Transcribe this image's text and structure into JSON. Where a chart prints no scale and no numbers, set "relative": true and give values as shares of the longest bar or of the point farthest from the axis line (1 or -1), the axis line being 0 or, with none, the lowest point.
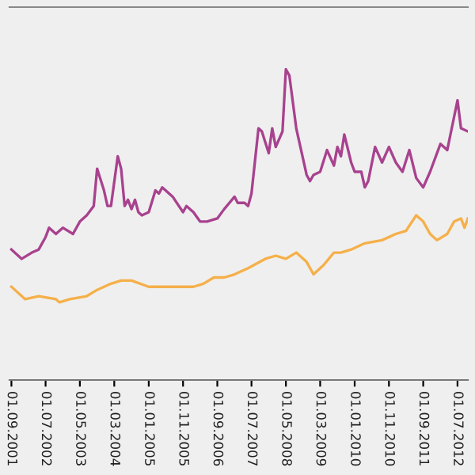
{
  "chart_data": {
    "type": "line",
    "relative": true,
    "grid": false,
    "legend": false,
    "xlim": [
      "2001-08-15",
      "2012-10-01"
    ],
    "xticks": [
      {
        "value": "2001-09-01",
        "label": "01.09.2001"
      },
      {
        "value": "2002-07-01",
        "label": "01.07.2002"
      },
      {
        "value": "2003-05-01",
        "label": "01.05.2003"
      },
      {
        "value": "2004-03-01",
        "label": "01.03.2004"
      },
      {
        "value": "2005-01-01",
        "label": "01.01.2005"
      },
      {
        "value": "2005-11-01",
        "label": "01.11.2005"
      },
      {
        "value": "2006-09-01",
        "label": "01.09.2006"
      },
      {
        "value": "2007-07-01",
        "label": "01.07.2007"
      },
      {
        "value": "2008-05-01",
        "label": "01.05.2008"
      },
      {
        "value": "2009-03-01",
        "label": "01.03.2009"
      },
      {
        "value": "2010-01-01",
        "label": "01.01.2010"
      },
      {
        "value": "2010-11-01",
        "label": "01.11.2010"
      },
      {
        "value": "2011-09-01",
        "label": "01.09.2011"
      },
      {
        "value": "2012-07-01",
        "label": "01.07.2012"
      }
    ],
    "series": [
      {
        "color": "#a8428e",
        "x": [
          "2001-09",
          "2001-12",
          "2002-03",
          "2002-05",
          "2002-07",
          "2002-08",
          "2002-10",
          "2002-12",
          "2003-03",
          "2003-05",
          "2003-07",
          "2003-09",
          "2003-10",
          "2003-12",
          "2004-01",
          "2004-02",
          "2004-04",
          "2004-05",
          "2004-06",
          "2004-07",
          "2004-08",
          "2004-09",
          "2004-10",
          "2004-11",
          "2005-01",
          "2005-03",
          "2005-04",
          "2005-05",
          "2005-08",
          "2005-11",
          "2005-12",
          "2006-02",
          "2006-04",
          "2006-06",
          "2006-09",
          "2006-11",
          "2007-02",
          "2007-03",
          "2007-05",
          "2007-06",
          "2007-07",
          "2007-09",
          "2007-10",
          "2007-12",
          "2008-01",
          "2008-02",
          "2008-04",
          "2008-05",
          "2008-06",
          "2008-08",
          "2008-11",
          "2008-12",
          "2009-01",
          "2009-03",
          "2009-05",
          "2009-07",
          "2009-08",
          "2009-09",
          "2009-10",
          "2009-12",
          "2010-01",
          "2010-03",
          "2010-04",
          "2010-05",
          "2010-07",
          "2010-09",
          "2010-11",
          "2011-01",
          "2011-03",
          "2011-05",
          "2011-07",
          "2011-09",
          "2011-11",
          "2012-02",
          "2012-04",
          "2012-07",
          "2012-08",
          "2012-10"
        ],
        "values": [
          0.42,
          0.39,
          0.41,
          0.42,
          0.46,
          0.49,
          0.47,
          0.49,
          0.47,
          0.51,
          0.53,
          0.56,
          0.68,
          0.61,
          0.56,
          0.56,
          0.72,
          0.68,
          0.56,
          0.58,
          0.55,
          0.58,
          0.54,
          0.53,
          0.54,
          0.61,
          0.6,
          0.62,
          0.59,
          0.54,
          0.56,
          0.54,
          0.51,
          0.51,
          0.52,
          0.55,
          0.59,
          0.57,
          0.57,
          0.56,
          0.6,
          0.81,
          0.8,
          0.73,
          0.81,
          0.75,
          0.8,
          1,
          0.98,
          0.81,
          0.66,
          0.64,
          0.66,
          0.67,
          0.74,
          0.69,
          0.75,
          0.72,
          0.79,
          0.7,
          0.67,
          0.67,
          0.62,
          0.64,
          0.75,
          0.7,
          0.75,
          0.7,
          0.67,
          0.74,
          0.65,
          0.62,
          0.67,
          0.76,
          0.74,
          0.9,
          0.81,
          0.8
        ]
      },
      {
        "color": "#f5b04a",
        "x": [
          "2001-09",
          "2002-01",
          "2002-05",
          "2002-10",
          "2002-11",
          "2003-02",
          "2003-07",
          "2003-10",
          "2004-02",
          "2004-05",
          "2004-08",
          "2005-01",
          "2005-05",
          "2005-09",
          "2006-02",
          "2006-05",
          "2006-08",
          "2006-11",
          "2007-02",
          "2007-06",
          "2007-11",
          "2008-02",
          "2008-05",
          "2008-08",
          "2008-11",
          "2009-01",
          "2009-04",
          "2009-07",
          "2009-09",
          "2009-12",
          "2010-04",
          "2010-09",
          "2011-01",
          "2011-04",
          "2011-07",
          "2011-09",
          "2011-11",
          "2012-01",
          "2012-04",
          "2012-06",
          "2012-08",
          "2012-09",
          "2012-10"
        ],
        "values": [
          0.3,
          0.26,
          0.27,
          0.26,
          0.25,
          0.26,
          0.27,
          0.29,
          0.31,
          0.32,
          0.32,
          0.3,
          0.3,
          0.3,
          0.3,
          0.31,
          0.33,
          0.33,
          0.34,
          0.36,
          0.39,
          0.4,
          0.39,
          0.41,
          0.38,
          0.34,
          0.37,
          0.41,
          0.41,
          0.42,
          0.44,
          0.45,
          0.47,
          0.48,
          0.53,
          0.51,
          0.47,
          0.45,
          0.47,
          0.51,
          0.52,
          0.49,
          0.52
        ]
      }
    ]
  }
}
